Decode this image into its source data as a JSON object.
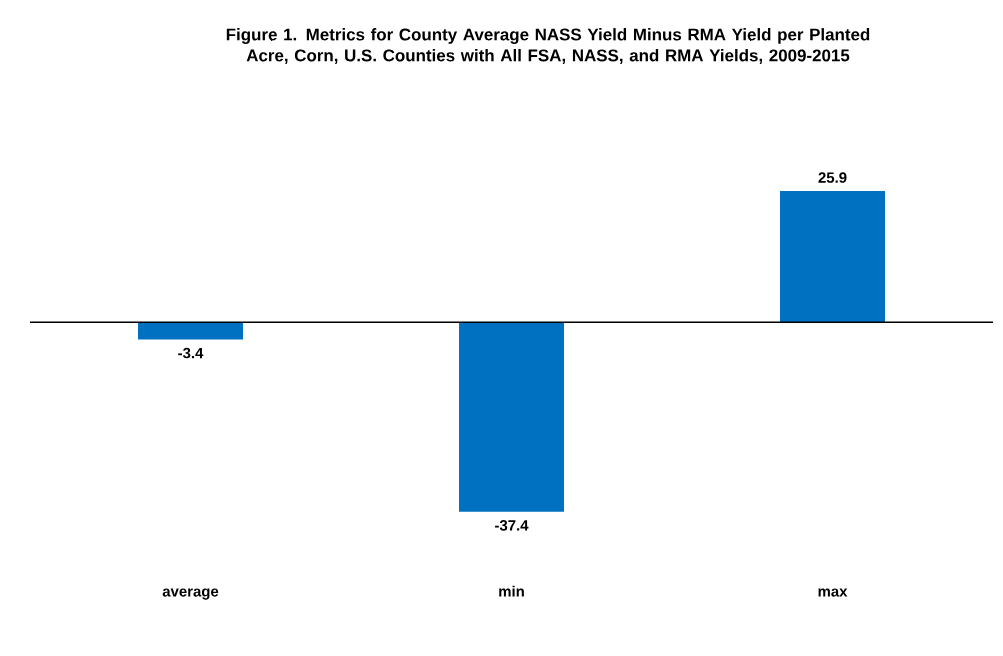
{
  "chart_data": {
    "type": "bar",
    "title": "Figure 1.  Metrics for County Average NASS Yield Minus RMA Yield per Planted Acre, Corn, U.S. Counties with All FSA, NASS, and RMA Yields, 2009-2015",
    "categories": [
      "average",
      "min",
      "max"
    ],
    "values": [
      -3.4,
      -37.4,
      25.9
    ],
    "color": "#0070c0",
    "data_labels": true
  }
}
